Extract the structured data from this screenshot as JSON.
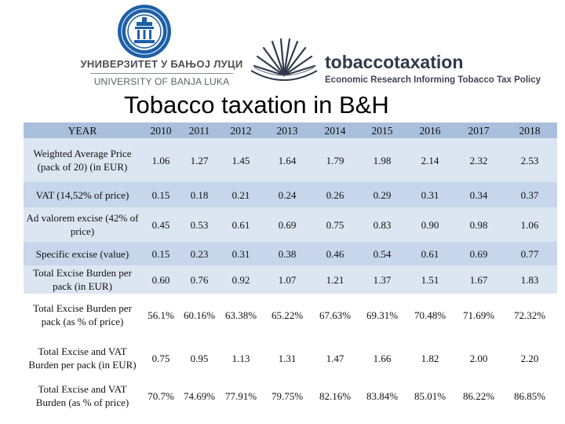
{
  "header": {
    "university_name_cyrillic": "УНИВЕРЗИТЕТ У БАЊОЈ ЛУЦИ",
    "university_name_latin": "UNIVERSITY OF BANJA LUKA",
    "brand_name": "tobaccotaxation",
    "brand_tagline": "Economic Research Informing Tobacco Tax Policy"
  },
  "title": "Tobacco taxation in B&H",
  "table": {
    "header": {
      "label": "YEAR",
      "years": [
        "2010",
        "2011",
        "2012",
        "2013",
        "2014",
        "2015",
        "2016",
        "2017",
        "2018"
      ]
    },
    "rows": [
      {
        "label": "Weighted Average Price (pack of 20) (in EUR)",
        "values": [
          "1.06",
          "1.27",
          "1.45",
          "1.64",
          "1.79",
          "1.98",
          "2.14",
          "2.32",
          "2.53"
        ]
      },
      {
        "label": "VAT (14,52% of price)",
        "values": [
          "0.15",
          "0.18",
          "0.21",
          "0.24",
          "0.26",
          "0.29",
          "0.31",
          "0.34",
          "0.37"
        ]
      },
      {
        "label": "Ad valorem excise (42% of price)",
        "values": [
          "0.45",
          "0.53",
          "0.61",
          "0.69",
          "0.75",
          "0.83",
          "0.90",
          "0.98",
          "1.06"
        ]
      },
      {
        "label": "Specific excise (value)",
        "values": [
          "0.15",
          "0.23",
          "0.31",
          "0.38",
          "0.46",
          "0.54",
          "0.61",
          "0.69",
          "0.77"
        ]
      },
      {
        "label": "Total Excise Burden per pack (in EUR)",
        "values": [
          "0.60",
          "0.76",
          "0.92",
          "1.07",
          "1.21",
          "1.37",
          "1.51",
          "1.67",
          "1.83"
        ]
      },
      {
        "label": "Total Excise Burden per pack (as % of price)",
        "values": [
          "56.1%",
          "60.16%",
          "63.38%",
          "65.22%",
          "67.63%",
          "69.31%",
          "70.48%",
          "71.69%",
          "72.32%"
        ]
      },
      {
        "label": "Total Excise and VAT Burden per pack (in EUR)",
        "values": [
          "0.75",
          "0.95",
          "1.13",
          "1.31",
          "1.47",
          "1.66",
          "1.82",
          "2.00",
          "2.20"
        ]
      },
      {
        "label": "Total Excise and VAT Burden (as % of price)",
        "values": [
          "70.7%",
          "74.69%",
          "77.91%",
          "79.75%",
          "82.16%",
          "83.84%",
          "85.01%",
          "86.22%",
          "86.85%"
        ]
      }
    ]
  }
}
